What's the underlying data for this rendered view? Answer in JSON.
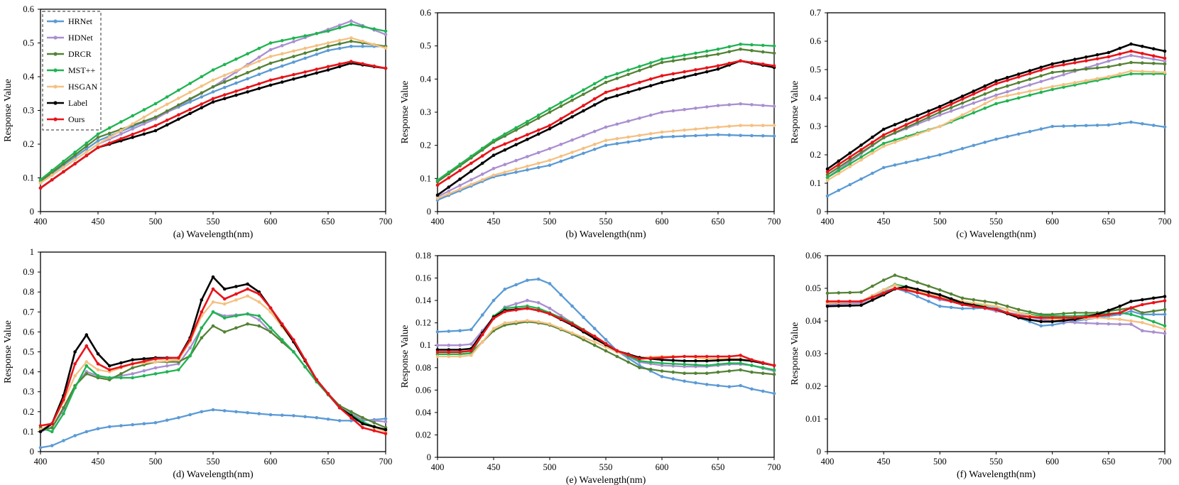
{
  "x_ticks": [
    400,
    450,
    500,
    550,
    600,
    650,
    700
  ],
  "y_axis_label": "Response Value",
  "series_styles": [
    {
      "name": "HRNet",
      "color": "#5B9BD5"
    },
    {
      "name": "HDNet",
      "color": "#A98FD0"
    },
    {
      "name": "DRCR",
      "color": "#548235"
    },
    {
      "name": "MST++",
      "color": "#1FB452"
    },
    {
      "name": "HSGAN",
      "color": "#F4C182"
    },
    {
      "name": "Label",
      "color": "#000000"
    },
    {
      "name": "Ours",
      "color": "#E8141A"
    }
  ],
  "chart_data": [
    {
      "type": "line",
      "xlabel": "(a) Wavelength(nm)",
      "ylabel": "Response Value",
      "xlim": [
        400,
        700
      ],
      "ylim": [
        0,
        0.6
      ],
      "yticks": [
        "0",
        "0.1",
        "0.2",
        "0.3",
        "0.4",
        "0.5",
        "0.6"
      ],
      "legend": "top-left",
      "x_knots": [
        400,
        450,
        500,
        550,
        600,
        650,
        670,
        700
      ],
      "series": [
        {
          "name": "HRNet",
          "knots": [
            0.09,
            0.21,
            0.28,
            0.355,
            0.42,
            0.478,
            0.49,
            0.49
          ]
        },
        {
          "name": "HDNet",
          "knots": [
            0.085,
            0.2,
            0.275,
            0.37,
            0.48,
            0.54,
            0.565,
            0.525
          ]
        },
        {
          "name": "DRCR",
          "knots": [
            0.09,
            0.22,
            0.28,
            0.37,
            0.44,
            0.49,
            0.505,
            0.49
          ]
        },
        {
          "name": "MST++",
          "knots": [
            0.095,
            0.23,
            0.32,
            0.42,
            0.5,
            0.535,
            0.555,
            0.535
          ]
        },
        {
          "name": "HSGAN",
          "knots": [
            0.085,
            0.2,
            0.3,
            0.39,
            0.46,
            0.5,
            0.515,
            0.485
          ]
        },
        {
          "name": "Label",
          "knots": [
            0.07,
            0.19,
            0.24,
            0.325,
            0.375,
            0.42,
            0.44,
            0.425
          ]
        },
        {
          "name": "Ours",
          "knots": [
            0.07,
            0.19,
            0.255,
            0.335,
            0.39,
            0.43,
            0.445,
            0.425
          ]
        }
      ]
    },
    {
      "type": "line",
      "xlabel": "(b) Wavelength(nm)",
      "ylabel": "Response Value",
      "xlim": [
        400,
        700
      ],
      "ylim": [
        0,
        0.6
      ],
      "yticks": [
        "0",
        "0.1",
        "0.2",
        "0.3",
        "0.4",
        "0.5",
        "0.6"
      ],
      "x_knots": [
        400,
        450,
        500,
        550,
        600,
        650,
        670,
        700
      ],
      "series": [
        {
          "name": "HRNet",
          "knots": [
            0.035,
            0.105,
            0.14,
            0.2,
            0.225,
            0.232,
            0.23,
            0.228
          ]
        },
        {
          "name": "HDNet",
          "knots": [
            0.045,
            0.13,
            0.19,
            0.255,
            0.3,
            0.32,
            0.325,
            0.318
          ]
        },
        {
          "name": "DRCR",
          "knots": [
            0.09,
            0.21,
            0.3,
            0.39,
            0.45,
            0.475,
            0.49,
            0.478
          ]
        },
        {
          "name": "MST++",
          "knots": [
            0.095,
            0.215,
            0.31,
            0.405,
            0.46,
            0.49,
            0.505,
            0.5
          ]
        },
        {
          "name": "HSGAN",
          "knots": [
            0.04,
            0.11,
            0.155,
            0.215,
            0.24,
            0.255,
            0.26,
            0.26
          ]
        },
        {
          "name": "Label",
          "knots": [
            0.05,
            0.17,
            0.25,
            0.34,
            0.39,
            0.43,
            0.455,
            0.435
          ]
        },
        {
          "name": "Ours",
          "knots": [
            0.08,
            0.19,
            0.26,
            0.36,
            0.41,
            0.44,
            0.455,
            0.44
          ]
        }
      ]
    },
    {
      "type": "line",
      "xlabel": "(c) Wavelength(nm)",
      "ylabel": "Response Value",
      "xlim": [
        400,
        700
      ],
      "ylim": [
        0,
        0.7
      ],
      "yticks": [
        "0",
        "0.1",
        "0.2",
        "0.3",
        "0.4",
        "0.5",
        "0.6",
        "0.7"
      ],
      "x_knots": [
        400,
        450,
        500,
        550,
        600,
        650,
        670,
        700
      ],
      "series": [
        {
          "name": "HRNet",
          "knots": [
            0.055,
            0.155,
            0.2,
            0.255,
            0.3,
            0.305,
            0.315,
            0.298
          ]
        },
        {
          "name": "HDNet",
          "knots": [
            0.12,
            0.26,
            0.34,
            0.41,
            0.47,
            0.53,
            0.55,
            0.53
          ]
        },
        {
          "name": "DRCR",
          "knots": [
            0.13,
            0.26,
            0.35,
            0.43,
            0.49,
            0.51,
            0.525,
            0.52
          ]
        },
        {
          "name": "MST++",
          "knots": [
            0.12,
            0.24,
            0.3,
            0.38,
            0.43,
            0.47,
            0.485,
            0.485
          ]
        },
        {
          "name": "HSGAN",
          "knots": [
            0.11,
            0.23,
            0.3,
            0.4,
            0.44,
            0.475,
            0.495,
            0.49
          ]
        },
        {
          "name": "Label",
          "knots": [
            0.15,
            0.29,
            0.37,
            0.46,
            0.52,
            0.56,
            0.59,
            0.565
          ]
        },
        {
          "name": "Ours",
          "knots": [
            0.14,
            0.27,
            0.36,
            0.45,
            0.51,
            0.545,
            0.565,
            0.54
          ]
        }
      ]
    },
    {
      "type": "line",
      "xlabel": "(d) Wavelength(nm)",
      "ylabel": "Response Value",
      "xlim": [
        400,
        700
      ],
      "ylim": [
        0,
        1
      ],
      "yticks": [
        "0",
        "0.1",
        "0.2",
        "0.3",
        "0.4",
        "0.5",
        "0.6",
        "0.7",
        "0.8",
        "0.9",
        "1"
      ],
      "x_knots": [
        400,
        410,
        420,
        430,
        440,
        450,
        460,
        480,
        500,
        520,
        530,
        540,
        550,
        560,
        580,
        590,
        600,
        620,
        640,
        660,
        680,
        700
      ],
      "series": [
        {
          "name": "HRNet",
          "knots": [
            0.02,
            0.03,
            0.055,
            0.08,
            0.1,
            0.115,
            0.125,
            0.135,
            0.145,
            0.17,
            0.185,
            0.2,
            0.21,
            0.205,
            0.195,
            0.19,
            0.185,
            0.18,
            0.17,
            0.155,
            0.155,
            0.165
          ]
        },
        {
          "name": "HDNet",
          "knots": [
            0.1,
            0.12,
            0.21,
            0.33,
            0.4,
            0.38,
            0.37,
            0.39,
            0.42,
            0.44,
            0.52,
            0.62,
            0.7,
            0.68,
            0.69,
            0.66,
            0.6,
            0.5,
            0.35,
            0.22,
            0.16,
            0.15
          ]
        },
        {
          "name": "DRCR",
          "knots": [
            0.11,
            0.12,
            0.22,
            0.33,
            0.39,
            0.37,
            0.36,
            0.42,
            0.45,
            0.45,
            0.48,
            0.57,
            0.63,
            0.6,
            0.64,
            0.63,
            0.6,
            0.5,
            0.35,
            0.23,
            0.17,
            0.12
          ]
        },
        {
          "name": "MST++",
          "knots": [
            0.12,
            0.1,
            0.19,
            0.32,
            0.43,
            0.38,
            0.37,
            0.37,
            0.39,
            0.41,
            0.48,
            0.62,
            0.7,
            0.67,
            0.69,
            0.68,
            0.62,
            0.5,
            0.35,
            0.22,
            0.15,
            0.1
          ]
        },
        {
          "name": "HSGAN",
          "knots": [
            0.11,
            0.14,
            0.25,
            0.38,
            0.45,
            0.41,
            0.4,
            0.44,
            0.45,
            0.46,
            0.55,
            0.68,
            0.75,
            0.74,
            0.78,
            0.75,
            0.7,
            0.55,
            0.36,
            0.22,
            0.14,
            0.1
          ]
        },
        {
          "name": "Label",
          "knots": [
            0.1,
            0.14,
            0.28,
            0.5,
            0.585,
            0.49,
            0.43,
            0.46,
            0.47,
            0.47,
            0.57,
            0.76,
            0.875,
            0.815,
            0.84,
            0.8,
            0.72,
            0.55,
            0.36,
            0.22,
            0.14,
            0.11
          ]
        },
        {
          "name": "Ours",
          "knots": [
            0.13,
            0.14,
            0.26,
            0.44,
            0.53,
            0.44,
            0.41,
            0.44,
            0.465,
            0.47,
            0.56,
            0.7,
            0.815,
            0.765,
            0.815,
            0.79,
            0.72,
            0.56,
            0.36,
            0.22,
            0.12,
            0.09
          ]
        }
      ]
    },
    {
      "type": "line",
      "xlabel": "(e) Wavelength(nm)",
      "ylabel": "Response Value",
      "xlim": [
        400,
        700
      ],
      "ylim": [
        0,
        0.18
      ],
      "yticks": [
        "0",
        "0.02",
        "0.04",
        "0.06",
        "0.08",
        "0.1",
        "0.12",
        "0.14",
        "0.16",
        "0.18"
      ],
      "x_knots": [
        400,
        420,
        430,
        450,
        460,
        480,
        490,
        500,
        520,
        540,
        560,
        580,
        600,
        620,
        640,
        660,
        670,
        680,
        700
      ],
      "series": [
        {
          "name": "HRNet",
          "knots": [
            0.112,
            0.113,
            0.114,
            0.14,
            0.15,
            0.158,
            0.159,
            0.155,
            0.135,
            0.115,
            0.095,
            0.082,
            0.072,
            0.068,
            0.065,
            0.063,
            0.064,
            0.061,
            0.057
          ]
        },
        {
          "name": "HDNet",
          "knots": [
            0.1,
            0.1,
            0.101,
            0.125,
            0.134,
            0.14,
            0.138,
            0.133,
            0.12,
            0.107,
            0.095,
            0.085,
            0.082,
            0.081,
            0.081,
            0.083,
            0.083,
            0.082,
            0.077
          ]
        },
        {
          "name": "DRCR",
          "knots": [
            0.092,
            0.092,
            0.093,
            0.113,
            0.118,
            0.121,
            0.12,
            0.118,
            0.11,
            0.1,
            0.09,
            0.08,
            0.077,
            0.075,
            0.075,
            0.077,
            0.078,
            0.076,
            0.074
          ]
        },
        {
          "name": "MST++",
          "knots": [
            0.092,
            0.092,
            0.093,
            0.126,
            0.133,
            0.135,
            0.133,
            0.129,
            0.12,
            0.108,
            0.095,
            0.086,
            0.084,
            0.083,
            0.082,
            0.084,
            0.084,
            0.082,
            0.078
          ]
        },
        {
          "name": "HSGAN",
          "knots": [
            0.09,
            0.09,
            0.091,
            0.115,
            0.12,
            0.122,
            0.121,
            0.119,
            0.111,
            0.103,
            0.094,
            0.089,
            0.09,
            0.09,
            0.088,
            0.088,
            0.088,
            0.086,
            0.082
          ]
        },
        {
          "name": "Label",
          "knots": [
            0.096,
            0.096,
            0.097,
            0.125,
            0.131,
            0.133,
            0.131,
            0.128,
            0.118,
            0.106,
            0.095,
            0.089,
            0.087,
            0.086,
            0.086,
            0.087,
            0.087,
            0.086,
            0.082
          ]
        },
        {
          "name": "Ours",
          "knots": [
            0.094,
            0.094,
            0.095,
            0.124,
            0.13,
            0.133,
            0.131,
            0.128,
            0.119,
            0.108,
            0.095,
            0.088,
            0.089,
            0.09,
            0.09,
            0.09,
            0.091,
            0.087,
            0.082
          ]
        }
      ]
    },
    {
      "type": "line",
      "xlabel": "(f) Wavelength(nm)",
      "ylabel": "Response Value",
      "xlim": [
        400,
        700
      ],
      "ylim": [
        0,
        0.06
      ],
      "yticks": [
        "0",
        "0.01",
        "0.02",
        "0.03",
        "0.04",
        "0.05",
        "0.06"
      ],
      "x_knots": [
        400,
        430,
        450,
        460,
        470,
        500,
        520,
        550,
        570,
        590,
        600,
        620,
        640,
        660,
        670,
        680,
        700
      ],
      "series": [
        {
          "name": "HRNet",
          "knots": [
            0.045,
            0.0455,
            0.049,
            0.05,
            0.049,
            0.0445,
            0.0438,
            0.044,
            0.041,
            0.0385,
            0.0388,
            0.04,
            0.041,
            0.042,
            0.043,
            0.042,
            0.042
          ]
        },
        {
          "name": "HDNet",
          "knots": [
            0.045,
            0.0455,
            0.0495,
            0.051,
            0.05,
            0.0465,
            0.0455,
            0.043,
            0.042,
            0.0405,
            0.04,
            0.0395,
            0.0392,
            0.039,
            0.039,
            0.037,
            0.0362
          ]
        },
        {
          "name": "DRCR",
          "knots": [
            0.0485,
            0.0488,
            0.0525,
            0.054,
            0.053,
            0.0495,
            0.047,
            0.0455,
            0.0435,
            0.042,
            0.042,
            0.0425,
            0.0425,
            0.0435,
            0.044,
            0.0425,
            0.0435
          ]
        },
        {
          "name": "MST++",
          "knots": [
            0.0455,
            0.046,
            0.0495,
            0.0512,
            0.0505,
            0.047,
            0.0455,
            0.0445,
            0.0425,
            0.0415,
            0.0415,
            0.0415,
            0.042,
            0.0425,
            0.042,
            0.041,
            0.0385
          ]
        },
        {
          "name": "HSGAN",
          "knots": [
            0.0455,
            0.046,
            0.0495,
            0.051,
            0.05,
            0.0475,
            0.046,
            0.0445,
            0.0425,
            0.041,
            0.0405,
            0.0405,
            0.041,
            0.0405,
            0.04,
            0.0395,
            0.0375
          ]
        },
        {
          "name": "Label",
          "knots": [
            0.0445,
            0.0448,
            0.048,
            0.0498,
            0.0505,
            0.048,
            0.0455,
            0.0435,
            0.041,
            0.0398,
            0.0398,
            0.0405,
            0.042,
            0.0445,
            0.046,
            0.0465,
            0.0475
          ]
        },
        {
          "name": "Ours",
          "knots": [
            0.046,
            0.046,
            0.0485,
            0.05,
            0.0495,
            0.047,
            0.045,
            0.0435,
            0.0415,
            0.041,
            0.041,
            0.041,
            0.0415,
            0.0425,
            0.044,
            0.045,
            0.0462
          ]
        }
      ]
    }
  ]
}
